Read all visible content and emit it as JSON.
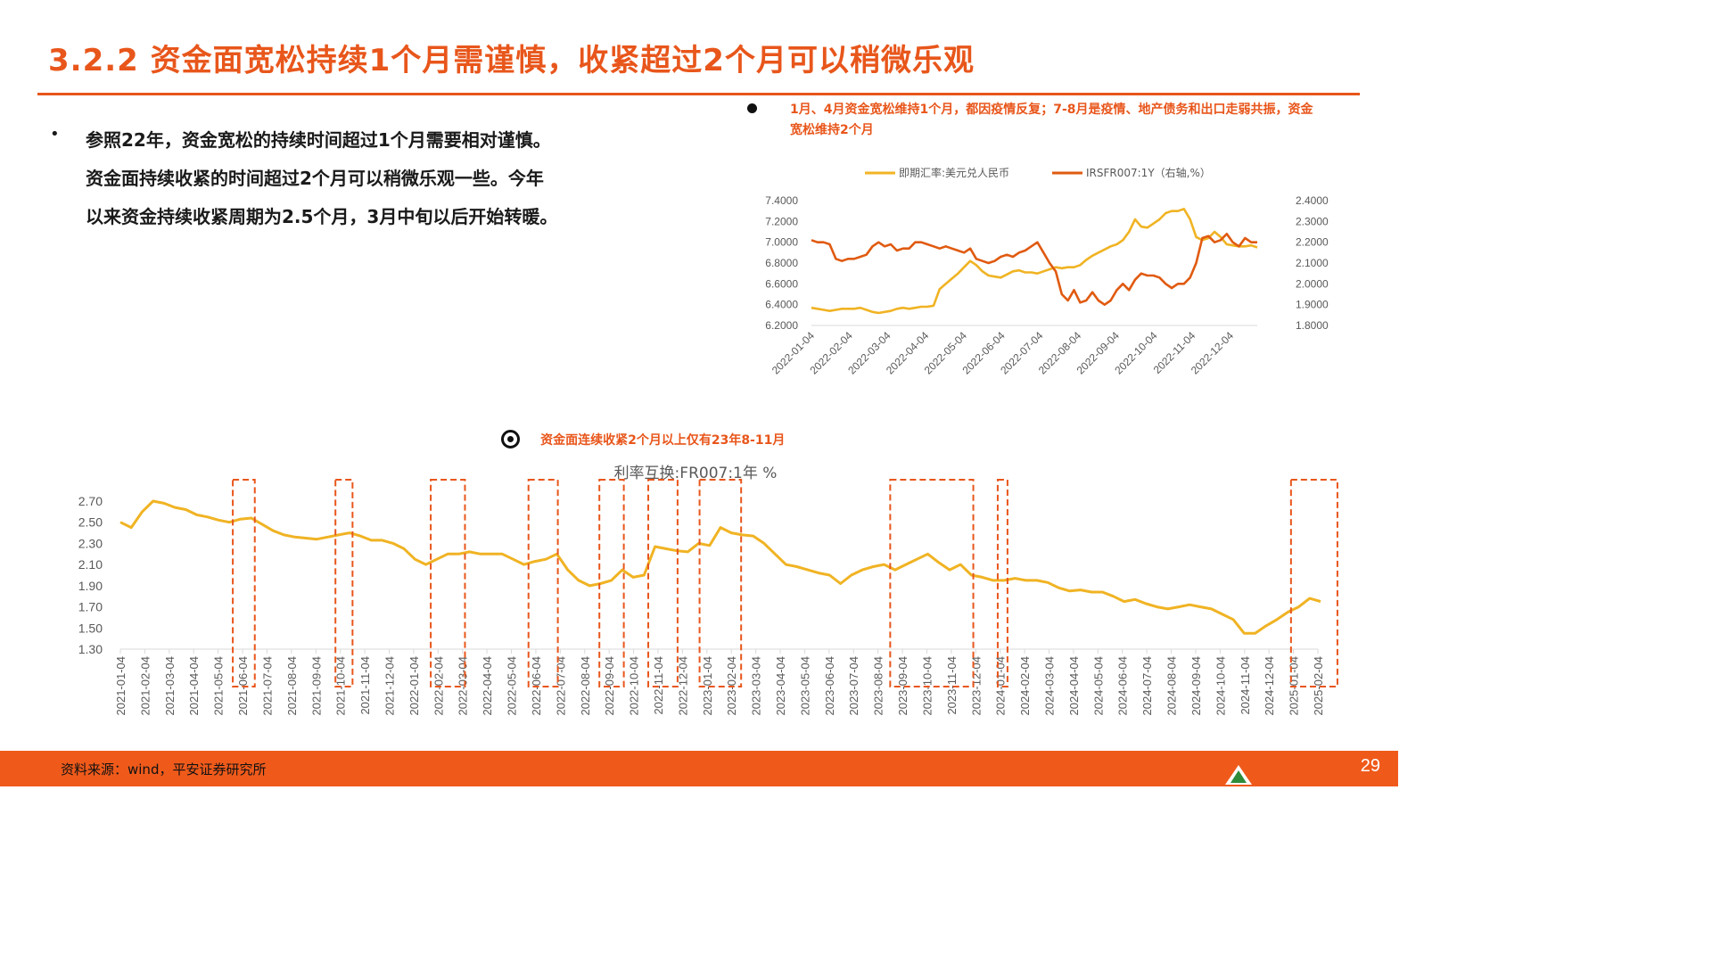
{
  "page": {
    "title": "3.2.2 资金面宽松持续1个月需谨慎，收紧超过2个月可以稍微乐观",
    "bullet_lines": [
      "参照22年，资金宽松的持续时间超过1个月需要相对谨慎。",
      "资金面持续收紧的时间超过2个月可以稍微乐观一些。今年",
      "以来资金持续收紧周期为2.5个月，3月中旬以后开始转暖。"
    ],
    "note_top": "1月、4月资金宽松维持1个月，都因疫情反复；7-8月是疫情、地产债务和出口走弱共振，资金宽松维持2个月",
    "note_bottom": "资金面连续收紧2个月以上仅有23年8-11月",
    "source": "资料来源：wind，平安证券研究所",
    "page_number": "29",
    "accent_color": "#e8561b"
  },
  "chart_data": [
    {
      "type": "line",
      "legend_position": "top",
      "series": [
        {
          "name": "即期汇率:美元兑人民币",
          "color": "#f0b323",
          "axis": "left",
          "values": [
            6.37,
            6.36,
            6.35,
            6.34,
            6.35,
            6.36,
            6.36,
            6.36,
            6.37,
            6.35,
            6.33,
            6.32,
            6.33,
            6.34,
            6.36,
            6.37,
            6.36,
            6.37,
            6.38,
            6.38,
            6.39,
            6.55,
            6.6,
            6.65,
            6.7,
            6.76,
            6.82,
            6.78,
            6.72,
            6.68,
            6.67,
            6.66,
            6.69,
            6.72,
            6.73,
            6.71,
            6.71,
            6.7,
            6.72,
            6.74,
            6.76,
            6.75,
            6.76,
            6.76,
            6.78,
            6.83,
            6.87,
            6.9,
            6.93,
            6.96,
            6.98,
            7.02,
            7.1,
            7.22,
            7.15,
            7.14,
            7.18,
            7.22,
            7.28,
            7.3,
            7.3,
            7.32,
            7.22,
            7.05,
            7.02,
            7.04,
            7.1,
            7.05,
            6.98,
            6.97,
            6.96,
            6.96,
            6.97,
            6.95
          ]
        },
        {
          "name": "IRSFR007:1Y（右轴,%）",
          "color": "#e05a10",
          "axis": "right",
          "values": [
            2.21,
            2.2,
            2.2,
            2.19,
            2.12,
            2.11,
            2.12,
            2.12,
            2.13,
            2.14,
            2.18,
            2.2,
            2.18,
            2.19,
            2.16,
            2.17,
            2.17,
            2.2,
            2.2,
            2.19,
            2.18,
            2.17,
            2.18,
            2.17,
            2.16,
            2.15,
            2.17,
            2.12,
            2.11,
            2.1,
            2.11,
            2.13,
            2.14,
            2.13,
            2.15,
            2.16,
            2.18,
            2.2,
            2.15,
            2.1,
            2.06,
            1.95,
            1.92,
            1.97,
            1.91,
            1.92,
            1.96,
            1.92,
            1.9,
            1.92,
            1.97,
            2.0,
            1.97,
            2.02,
            2.05,
            2.04,
            2.04,
            2.03,
            2.0,
            1.98,
            2.0,
            2.0,
            2.03,
            2.1,
            2.22,
            2.23,
            2.2,
            2.21,
            2.24,
            2.2,
            2.18,
            2.22,
            2.2,
            2.2
          ]
        }
      ],
      "x_tick_labels": [
        "2022-01-04",
        "2022-02-04",
        "2022-03-04",
        "2022-04-04",
        "2022-05-04",
        "2022-06-04",
        "2022-07-04",
        "2022-08-04",
        "2022-09-04",
        "2022-10-04",
        "2022-11-04",
        "2022-12-04"
      ],
      "y_left_ticks": [
        "7.4000",
        "7.2000",
        "7.0000",
        "6.8000",
        "6.6000",
        "6.4000",
        "6.2000"
      ],
      "y_left_range": [
        6.2,
        7.4
      ],
      "y_right_ticks": [
        "2.4000",
        "2.3000",
        "2.2000",
        "2.1000",
        "2.0000",
        "1.9000",
        "1.8000"
      ],
      "y_right_range": [
        1.8,
        2.4
      ]
    },
    {
      "type": "line",
      "title": "利率互换:FR007:1年 %",
      "series": [
        {
          "color": "#f0b323",
          "values": [
            2.5,
            2.45,
            2.6,
            2.7,
            2.68,
            2.64,
            2.62,
            2.57,
            2.55,
            2.52,
            2.5,
            2.53,
            2.54,
            2.48,
            2.42,
            2.38,
            2.36,
            2.35,
            2.34,
            2.36,
            2.38,
            2.4,
            2.37,
            2.33,
            2.33,
            2.3,
            2.25,
            2.15,
            2.1,
            2.15,
            2.2,
            2.2,
            2.22,
            2.2,
            2.2,
            2.2,
            2.15,
            2.1,
            2.13,
            2.15,
            2.2,
            2.05,
            1.95,
            1.9,
            1.92,
            1.95,
            2.05,
            1.98,
            2.0,
            2.27,
            2.25,
            2.23,
            2.22,
            2.3,
            2.28,
            2.45,
            2.4,
            2.38,
            2.37,
            2.3,
            2.2,
            2.1,
            2.08,
            2.05,
            2.02,
            2.0,
            1.92,
            2.0,
            2.05,
            2.08,
            2.1,
            2.05,
            2.1,
            2.15,
            2.2,
            2.12,
            2.05,
            2.1,
            2.0,
            1.98,
            1.95,
            1.95,
            1.97,
            1.95,
            1.95,
            1.93,
            1.88,
            1.85,
            1.86,
            1.84,
            1.84,
            1.8,
            1.75,
            1.77,
            1.73,
            1.7,
            1.68,
            1.7,
            1.72,
            1.7,
            1.68,
            1.63,
            1.58,
            1.45,
            1.45,
            1.52,
            1.58,
            1.65,
            1.7,
            1.78,
            1.75
          ]
        }
      ],
      "x_tick_labels": [
        "2021-01-04",
        "2021-02-04",
        "2021-03-04",
        "2021-04-04",
        "2021-05-04",
        "2021-06-04",
        "2021-07-04",
        "2021-08-04",
        "2021-09-04",
        "2021-10-04",
        "2021-11-04",
        "2021-12-04",
        "2022-01-04",
        "2022-02-04",
        "2022-03-04",
        "2022-04-04",
        "2022-05-04",
        "2022-06-04",
        "2022-07-04",
        "2022-08-04",
        "2022-09-04",
        "2022-10-04",
        "2022-11-04",
        "2022-12-04",
        "2023-01-04",
        "2023-02-04",
        "2023-03-04",
        "2023-04-04",
        "2023-05-04",
        "2023-06-04",
        "2023-07-04",
        "2023-08-04",
        "2023-09-04",
        "2023-10-04",
        "2023-11-04",
        "2023-12-04",
        "2024-01-04",
        "2024-02-04",
        "2024-03-04",
        "2024-04-04",
        "2024-05-04",
        "2024-06-04",
        "2024-07-04",
        "2024-08-04",
        "2024-09-04",
        "2024-10-04",
        "2024-11-04",
        "2024-12-04",
        "2025-01-04",
        "2025-02-04"
      ],
      "y_ticks": [
        "2.70",
        "2.50",
        "2.30",
        "2.10",
        "1.90",
        "1.70",
        "1.50",
        "1.30"
      ],
      "y_range": [
        1.3,
        2.7
      ],
      "highlight_periods": [
        {
          "start": 4.6,
          "end": 5.5
        },
        {
          "start": 8.8,
          "end": 9.5
        },
        {
          "start": 12.7,
          "end": 14.1
        },
        {
          "start": 16.7,
          "end": 17.9
        },
        {
          "start": 19.6,
          "end": 20.6
        },
        {
          "start": 21.6,
          "end": 22.8
        },
        {
          "start": 23.7,
          "end": 25.4
        },
        {
          "start": 31.5,
          "end": 34.9
        },
        {
          "start": 35.9,
          "end": 36.3
        },
        {
          "start": 47.9,
          "end": 49.8
        }
      ],
      "highlight_color": "#e8561b"
    }
  ]
}
